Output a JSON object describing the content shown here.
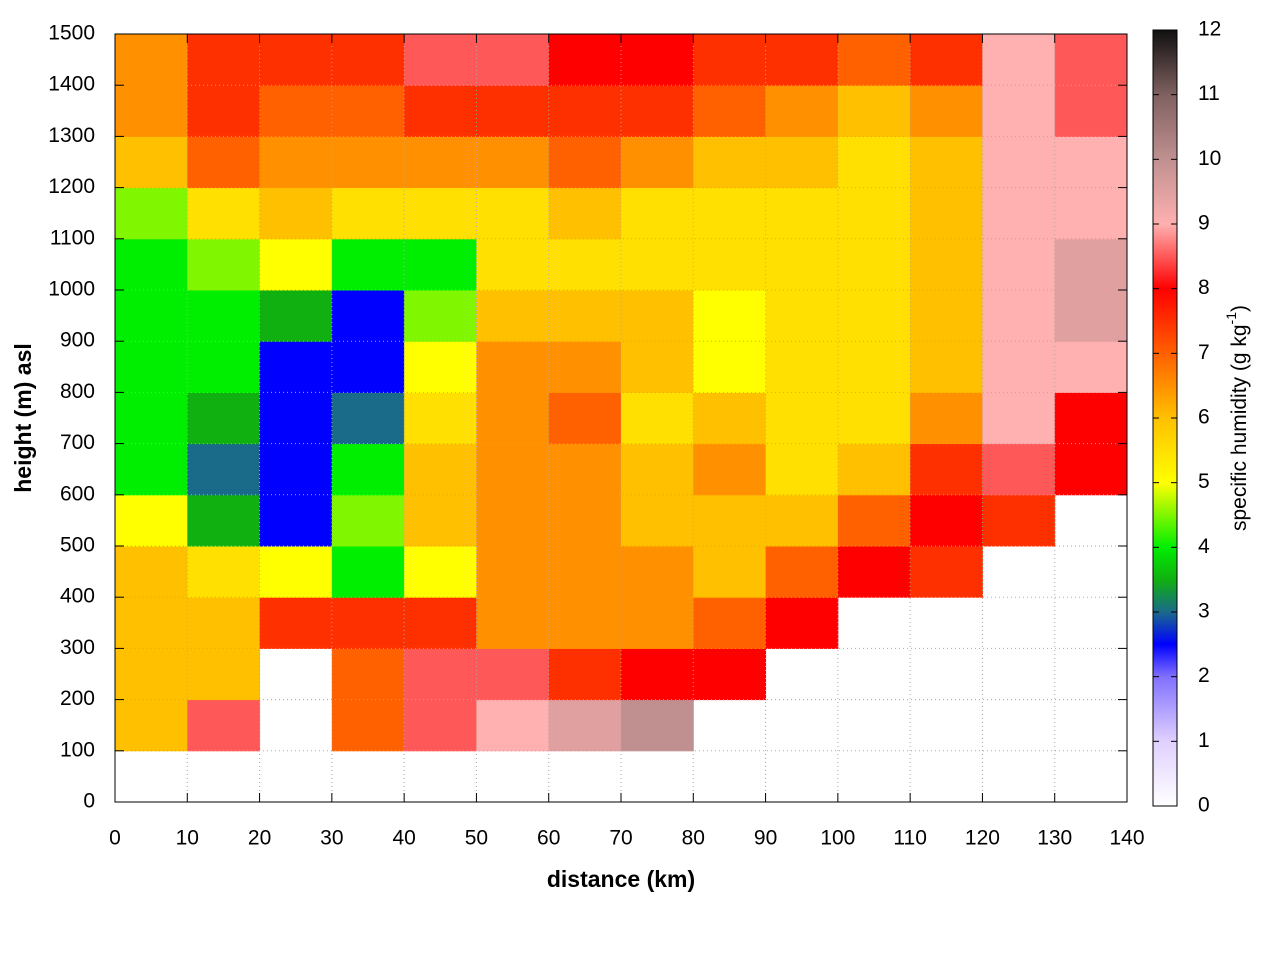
{
  "chart_data": {
    "type": "heatmap",
    "xlabel": "distance (km)",
    "ylabel": "height (m) asl",
    "colorbar_label": {
      "text": "specific humidity (g kg",
      "superscript": "-1",
      "suffix": ")"
    },
    "x": [
      5,
      15,
      25,
      35,
      45,
      55,
      65,
      75,
      85,
      95,
      105,
      115,
      125,
      135
    ],
    "y": [
      50,
      150,
      250,
      350,
      450,
      550,
      650,
      750,
      850,
      950,
      1050,
      1150,
      1250,
      1350,
      1450
    ],
    "z": [
      [
        null,
        null,
        null,
        null,
        null,
        null,
        null,
        null,
        null,
        null,
        null,
        null,
        null,
        null
      ],
      [
        6,
        8.5,
        null,
        7,
        8.5,
        9,
        9.5,
        10,
        null,
        null,
        null,
        null,
        null,
        null
      ],
      [
        6,
        6,
        null,
        7,
        8.5,
        8.5,
        7.5,
        8,
        8,
        null,
        null,
        null,
        null,
        null
      ],
      [
        6,
        6,
        7.5,
        7.5,
        7.5,
        6.5,
        6.5,
        6.5,
        7,
        8,
        null,
        null,
        null,
        null
      ],
      [
        6,
        5.5,
        5,
        4,
        5,
        6.5,
        6.5,
        6.5,
        6,
        7,
        8,
        7.5,
        null,
        null
      ],
      [
        5,
        3.5,
        2.5,
        4.5,
        6,
        6.5,
        6.5,
        6,
        6,
        6,
        7,
        8,
        7.5,
        null
      ],
      [
        4,
        3,
        2.5,
        4,
        6,
        6.5,
        6.5,
        6,
        6.5,
        5.5,
        6,
        7.5,
        8.5,
        8
      ],
      [
        4,
        3.5,
        2.5,
        3,
        5.5,
        6.5,
        7,
        5.5,
        6,
        5.5,
        5.5,
        6.5,
        9,
        8
      ],
      [
        4,
        4,
        2.5,
        2.5,
        5,
        6.5,
        6.5,
        6,
        5,
        5.5,
        5.5,
        6,
        9,
        9
      ],
      [
        4,
        4,
        3.5,
        2.5,
        4.5,
        6,
        6,
        6,
        5,
        5.5,
        5.5,
        6,
        9,
        9.5
      ],
      [
        4,
        4.5,
        5,
        4,
        4,
        5.5,
        5.5,
        5.5,
        5.5,
        5.5,
        5.5,
        6,
        9,
        9.5
      ],
      [
        4.5,
        5.5,
        6,
        5.5,
        5.5,
        5.5,
        6,
        5.5,
        5.5,
        5.5,
        5.5,
        6,
        9,
        9
      ],
      [
        6,
        7,
        6.5,
        6.5,
        6.5,
        6.5,
        7,
        6.5,
        6,
        6,
        5.5,
        6,
        9,
        9
      ],
      [
        6.5,
        7.5,
        7,
        7,
        7.5,
        7.5,
        7.5,
        7.5,
        7,
        6.5,
        6,
        6.5,
        9,
        8.5
      ],
      [
        6.5,
        7.5,
        7.5,
        7.5,
        8.5,
        8.5,
        8,
        8,
        7.5,
        7.5,
        7,
        7.5,
        9,
        8.5
      ]
    ],
    "xlim": [
      0,
      140
    ],
    "xticks": [
      0,
      10,
      20,
      30,
      40,
      50,
      60,
      70,
      80,
      90,
      100,
      110,
      120,
      130,
      140
    ],
    "ylim": [
      0,
      1500
    ],
    "yticks": [
      0,
      100,
      200,
      300,
      400,
      500,
      600,
      700,
      800,
      900,
      1000,
      1100,
      1200,
      1300,
      1400,
      1500
    ],
    "clim": [
      0,
      12
    ],
    "cticks": [
      0,
      1,
      2,
      3,
      4,
      5,
      6,
      7,
      8,
      9,
      10,
      11,
      12
    ],
    "colorscale": [
      [
        0,
        "#ffffff"
      ],
      [
        1,
        "#e0d0ff"
      ],
      [
        2,
        "#8070ff"
      ],
      [
        2.5,
        "#0000ff"
      ],
      [
        3,
        "#1a6a8a"
      ],
      [
        3.5,
        "#10b010"
      ],
      [
        4,
        "#00ee00"
      ],
      [
        5,
        "#ffff00"
      ],
      [
        6,
        "#ffc000"
      ],
      [
        7,
        "#ff6000"
      ],
      [
        8,
        "#ff0000"
      ],
      [
        9,
        "#ffb0b0"
      ],
      [
        10,
        "#c09090"
      ],
      [
        11,
        "#806060"
      ],
      [
        12,
        "#101010"
      ]
    ],
    "grid": true
  }
}
